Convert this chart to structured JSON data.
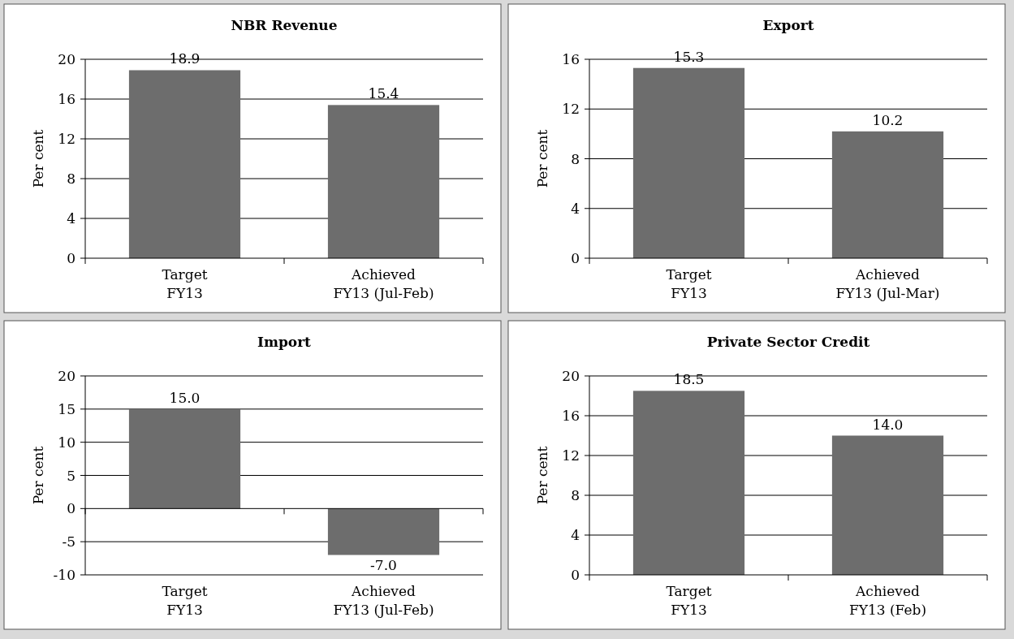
{
  "chart_data": [
    {
      "type": "bar",
      "title": "NBR Revenue",
      "ylabel": "Per cent",
      "categories": [
        "Target\nFY13",
        "Achieved\nFY13 (Jul-Feb)"
      ],
      "values": [
        18.9,
        15.4
      ],
      "value_labels": [
        "18.9",
        "15.4"
      ],
      "color": "#6d6d6d",
      "ylim": [
        0,
        20
      ],
      "yticks": [
        0,
        4,
        8,
        12,
        16,
        20
      ],
      "grid": "y"
    },
    {
      "type": "bar",
      "title": "Export",
      "ylabel": "Per cent",
      "categories": [
        "Target\nFY13",
        "Achieved\nFY13 (Jul-Mar)"
      ],
      "values": [
        15.3,
        10.2
      ],
      "value_labels": [
        "15.3",
        "10.2"
      ],
      "color": "#6d6d6d",
      "ylim": [
        0,
        16
      ],
      "yticks": [
        0,
        4,
        8,
        12,
        16
      ],
      "grid": "y"
    },
    {
      "type": "bar",
      "title": "Import",
      "ylabel": "Per cent",
      "categories": [
        "Target\nFY13",
        "Achieved\nFY13 (Jul-Feb)"
      ],
      "values": [
        15,
        -7
      ],
      "value_labels": [
        "15.0",
        "-7.0"
      ],
      "color": "#6d6d6d",
      "ylim": [
        -10,
        20
      ],
      "yticks": [
        -10,
        -5,
        0,
        5,
        10,
        15,
        20
      ],
      "grid": "y"
    },
    {
      "type": "bar",
      "title": "Private Sector Credit",
      "ylabel": "Per cent",
      "categories": [
        "Target\nFY13",
        "Achieved\nFY13 (Feb)"
      ],
      "values": [
        18.5,
        14
      ],
      "value_labels": [
        "18.5",
        "14.0"
      ],
      "color": "#6d6d6d",
      "ylim": [
        0,
        20
      ],
      "yticks": [
        0,
        4,
        8,
        12,
        16,
        20
      ],
      "grid": "y"
    }
  ]
}
